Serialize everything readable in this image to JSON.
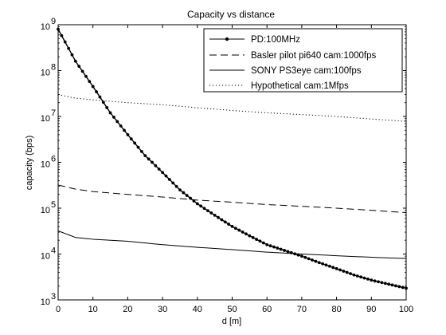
{
  "chart_data": {
    "type": "line",
    "title": "Capacity vs distance",
    "xlabel": "d [m]",
    "ylabel": "capacity (bps)",
    "xlim": [
      0,
      100
    ],
    "ylim": [
      1000,
      1000000000
    ],
    "yscale": "log",
    "xticks": [
      0,
      10,
      20,
      30,
      40,
      50,
      60,
      70,
      80,
      90,
      100
    ],
    "yticks": [
      {
        "base": "10",
        "exp": "3",
        "value": 1000
      },
      {
        "base": "10",
        "exp": "4",
        "value": 10000
      },
      {
        "base": "10",
        "exp": "5",
        "value": 100000
      },
      {
        "base": "10",
        "exp": "6",
        "value": 1000000
      },
      {
        "base": "10",
        "exp": "7",
        "value": 10000000
      },
      {
        "base": "10",
        "exp": "8",
        "value": 100000000
      },
      {
        "base": "10",
        "exp": "9",
        "value": 1000000000
      }
    ],
    "grid": false,
    "legend_position": "top-right",
    "line_color": "#000000",
    "series": [
      {
        "name": "PD:100MHz",
        "style": "solid-dot-markers",
        "x": [
          0,
          5,
          10,
          15,
          20,
          25,
          30,
          35,
          40,
          45,
          50,
          55,
          60,
          65,
          70,
          75,
          80,
          85,
          90,
          95,
          100
        ],
        "y": [
          800000000,
          160000000,
          45000000,
          12000000,
          4000000,
          1400000,
          600000,
          250000,
          125000,
          70000,
          40000,
          25000,
          16000,
          12000,
          9000,
          6500,
          4800,
          3500,
          2700,
          2200,
          1800
        ]
      },
      {
        "name": "Basler pilot pi640 cam:1000fps",
        "style": "dashed",
        "x": [
          0,
          5,
          10,
          20,
          30,
          40,
          50,
          60,
          70,
          80,
          90,
          100
        ],
        "y": [
          320000,
          260000,
          230000,
          200000,
          175000,
          150000,
          135000,
          120000,
          110000,
          100000,
          90000,
          80000
        ]
      },
      {
        "name": "SONY PS3eye cam:100fps",
        "style": "solid",
        "x": [
          0,
          5,
          10,
          20,
          30,
          40,
          50,
          60,
          70,
          80,
          90,
          100
        ],
        "y": [
          32000,
          23000,
          21000,
          19000,
          16000,
          14000,
          12500,
          11000,
          10000,
          9200,
          8500,
          8000
        ]
      },
      {
        "name": "Hypothetical cam:1Mfps",
        "style": "dotted",
        "x": [
          0,
          5,
          10,
          20,
          30,
          40,
          50,
          60,
          70,
          80,
          90,
          100
        ],
        "y": [
          30000000,
          25000000,
          23000000,
          20000000,
          18000000,
          15500000,
          13500000,
          12000000,
          11000000,
          10000000,
          8800000,
          7800000
        ]
      }
    ]
  }
}
